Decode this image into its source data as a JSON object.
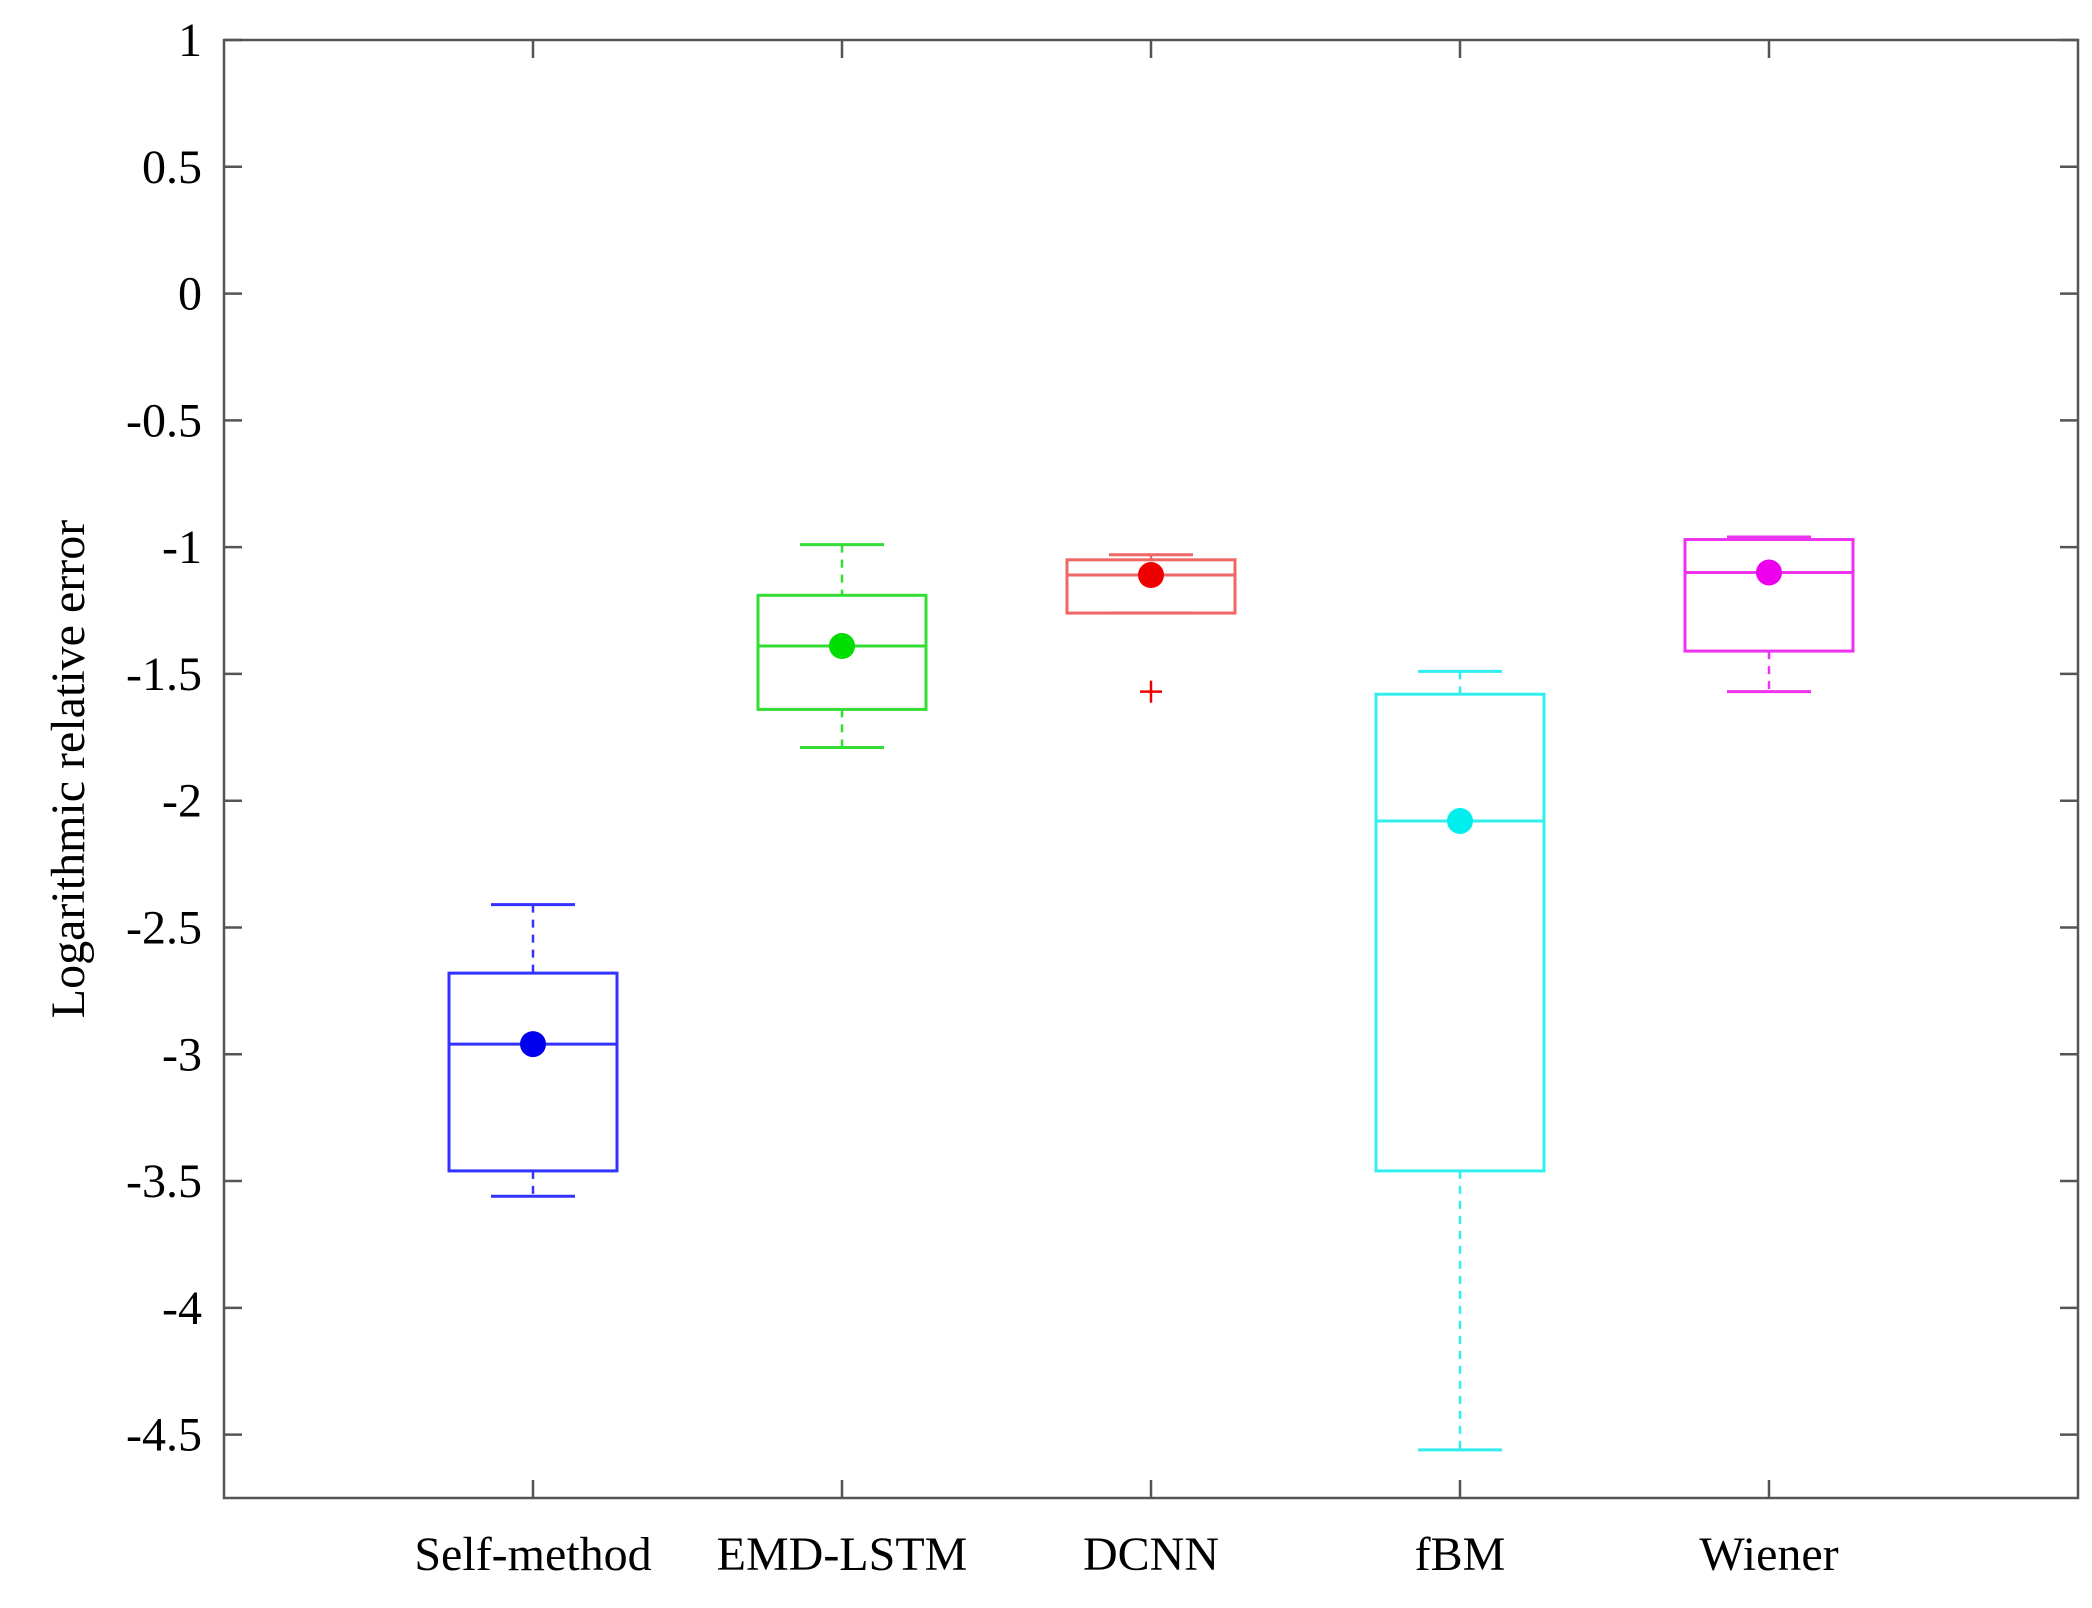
{
  "chart_data": {
    "type": "boxplot",
    "title": "",
    "xlabel": "",
    "ylabel": "Logarithmic relative error",
    "ylim": [
      -4.75,
      1
    ],
    "yticks": [
      1,
      0.5,
      0,
      -0.5,
      -1,
      -1.5,
      -2,
      -2.5,
      -3,
      -3.5,
      -4,
      -4.5
    ],
    "ytick_labels": [
      "1",
      "0.5",
      "0",
      "-0.5",
      "-1",
      "-1.5",
      "-2",
      "-2.5",
      "-3",
      "-3.5",
      "-4",
      "-4.5"
    ],
    "grid": false,
    "categories": [
      "Self-method",
      "EMD-LSTM",
      "DCNN",
      "fBM",
      "Wiener"
    ],
    "series": [
      {
        "name": "Self-method",
        "color": "#3333ff",
        "marker_color": "#0000ee",
        "whisker_low": -3.56,
        "q1": -3.46,
        "median": -2.96,
        "q3": -2.68,
        "whisker_high": -2.41,
        "mean": -2.96,
        "outliers": []
      },
      {
        "name": "EMD-LSTM",
        "color": "#33dd33",
        "marker_color": "#00dd00",
        "whisker_low": -1.79,
        "q1": -1.64,
        "median": -1.39,
        "q3": -1.19,
        "whisker_high": -0.99,
        "mean": -1.39,
        "outliers": []
      },
      {
        "name": "DCNN",
        "color": "#ee6666",
        "marker_color": "#ee0000",
        "whisker_low": -1.26,
        "q1": -1.26,
        "median": -1.11,
        "q3": -1.05,
        "whisker_high": -1.03,
        "mean": -1.11,
        "outliers": [
          -1.57
        ]
      },
      {
        "name": "fBM",
        "color": "#33eeee",
        "marker_color": "#00eeee",
        "whisker_low": -4.56,
        "q1": -3.46,
        "median": -2.08,
        "q3": -1.58,
        "whisker_high": -1.49,
        "mean": -2.08,
        "outliers": []
      },
      {
        "name": "Wiener",
        "color": "#ee33ee",
        "marker_color": "#ee00ee",
        "whisker_low": -1.57,
        "q1": -1.41,
        "median": -1.1,
        "q3": -0.97,
        "whisker_high": -0.96,
        "mean": -1.1,
        "outliers": []
      }
    ]
  }
}
